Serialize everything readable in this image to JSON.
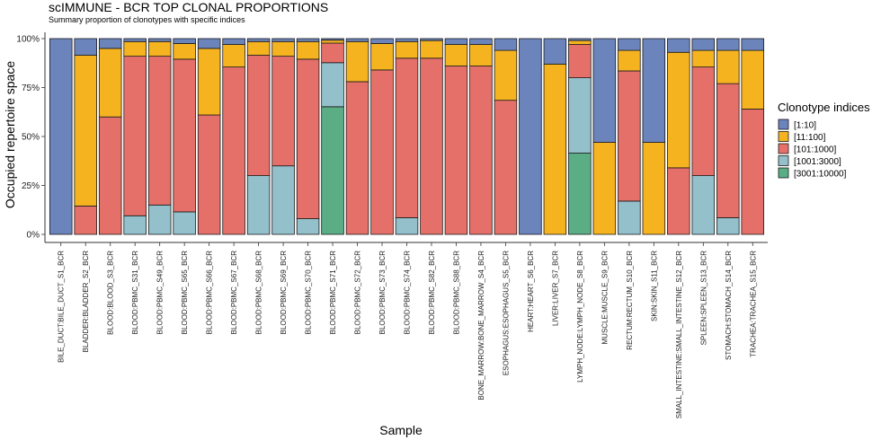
{
  "chart_data": {
    "type": "bar",
    "stacked": true,
    "title": "scIMMUNE - BCR TOP CLONAL PROPORTIONS",
    "subtitle": "Summary proportion of clonotypes with specific indices",
    "xlabel": "Sample",
    "ylabel": "Occupied repertoire space",
    "ylim": [
      0,
      1
    ],
    "y_ticks": [
      "0%",
      "25%",
      "50%",
      "75%",
      "100%"
    ],
    "grid": false,
    "legend_position": "right",
    "legend_title": "Clonotype indices",
    "categories": [
      "BILE_DUCT:BILE_DUCT_S1_BCR",
      "BLADDER:BLADDER_S2_BCR",
      "BLOOD:BLOOD_S3_BCR",
      "BLOOD:PBMC_S31_BCR",
      "BLOOD:PBMC_S49_BCR",
      "BLOOD:PBMC_S65_BCR",
      "BLOOD:PBMC_S66_BCR",
      "BLOOD:PBMC_S67_BCR",
      "BLOOD:PBMC_S68_BCR",
      "BLOOD:PBMC_S69_BCR",
      "BLOOD:PBMC_S70_BCR",
      "BLOOD:PBMC_S71_BCR",
      "BLOOD:PBMC_S72_BCR",
      "BLOOD:PBMC_S73_BCR",
      "BLOOD:PBMC_S74_BCR",
      "BLOOD:PBMC_S82_BCR",
      "BLOOD:PBMC_S88_BCR",
      "BONE_MARROW:BONE_MARROW_S4_BCR",
      "ESOPHAGUS:ESOPHAGUS_S5_BCR",
      "HEART:HEART_S6_BCR",
      "LIVER:LIVER_S7_BCR",
      "LYMPH_NODE:LYMPH_NODE_S8_BCR",
      "MUSCLE:MUSCLE_S9_BCR",
      "RECTUM:RECTUM_S10_BCR",
      "SKIN:SKIN_S11_BCR",
      "SMALL_INTESTINE:SMALL_INTESTINE_S12_BCR",
      "SPLEEN:SPLEEN_S13_BCR",
      "STOMACH:STOMACH_S14_BCR",
      "TRACHEA:TRACHEA_S15_BCR"
    ],
    "series": [
      {
        "name": "[1:10]",
        "color": "#6B84BC",
        "values": [
          1.0,
          0.085,
          0.05,
          0.015,
          0.015,
          0.025,
          0.05,
          0.03,
          0.015,
          0.015,
          0.015,
          0.008,
          0.015,
          0.025,
          0.015,
          0.01,
          0.03,
          0.03,
          0.06,
          1.0,
          0.13,
          0.01,
          0.53,
          0.06,
          0.53,
          0.07,
          0.06,
          0.06,
          0.06
        ]
      },
      {
        "name": "[11:100]",
        "color": "#F5B320",
        "values": [
          0.0,
          0.77,
          0.35,
          0.075,
          0.075,
          0.08,
          0.34,
          0.115,
          0.07,
          0.075,
          0.09,
          0.015,
          0.205,
          0.135,
          0.085,
          0.09,
          0.11,
          0.11,
          0.255,
          0.0,
          0.87,
          0.02,
          0.47,
          0.105,
          0.47,
          0.59,
          0.085,
          0.17,
          0.3
        ]
      },
      {
        "name": "[101:1000]",
        "color": "#E5706A",
        "values": [
          0.0,
          0.145,
          0.6,
          0.815,
          0.76,
          0.78,
          0.61,
          0.855,
          0.615,
          0.56,
          0.815,
          0.1,
          0.78,
          0.84,
          0.815,
          0.9,
          0.86,
          0.86,
          0.685,
          0.0,
          0.0,
          0.17,
          0.0,
          0.665,
          0.0,
          0.34,
          0.555,
          0.685,
          0.64
        ]
      },
      {
        "name": "[1001:3000]",
        "color": "#93C0CB",
        "values": [
          0.0,
          0.0,
          0.0,
          0.095,
          0.15,
          0.115,
          0.0,
          0.0,
          0.3,
          0.35,
          0.08,
          0.225,
          0.0,
          0.0,
          0.085,
          0.0,
          0.0,
          0.0,
          0.0,
          0.0,
          0.0,
          0.385,
          0.0,
          0.17,
          0.0,
          0.0,
          0.3,
          0.085,
          0.0
        ]
      },
      {
        "name": "[3001:10000]",
        "color": "#5BAD86",
        "values": [
          0.0,
          0.0,
          0.0,
          0.0,
          0.0,
          0.0,
          0.0,
          0.0,
          0.0,
          0.0,
          0.0,
          0.652,
          0.0,
          0.0,
          0.0,
          0.0,
          0.0,
          0.0,
          0.0,
          0.0,
          0.0,
          0.415,
          0.0,
          0.0,
          0.0,
          0.0,
          0.0,
          0.0,
          0.0
        ]
      }
    ]
  }
}
